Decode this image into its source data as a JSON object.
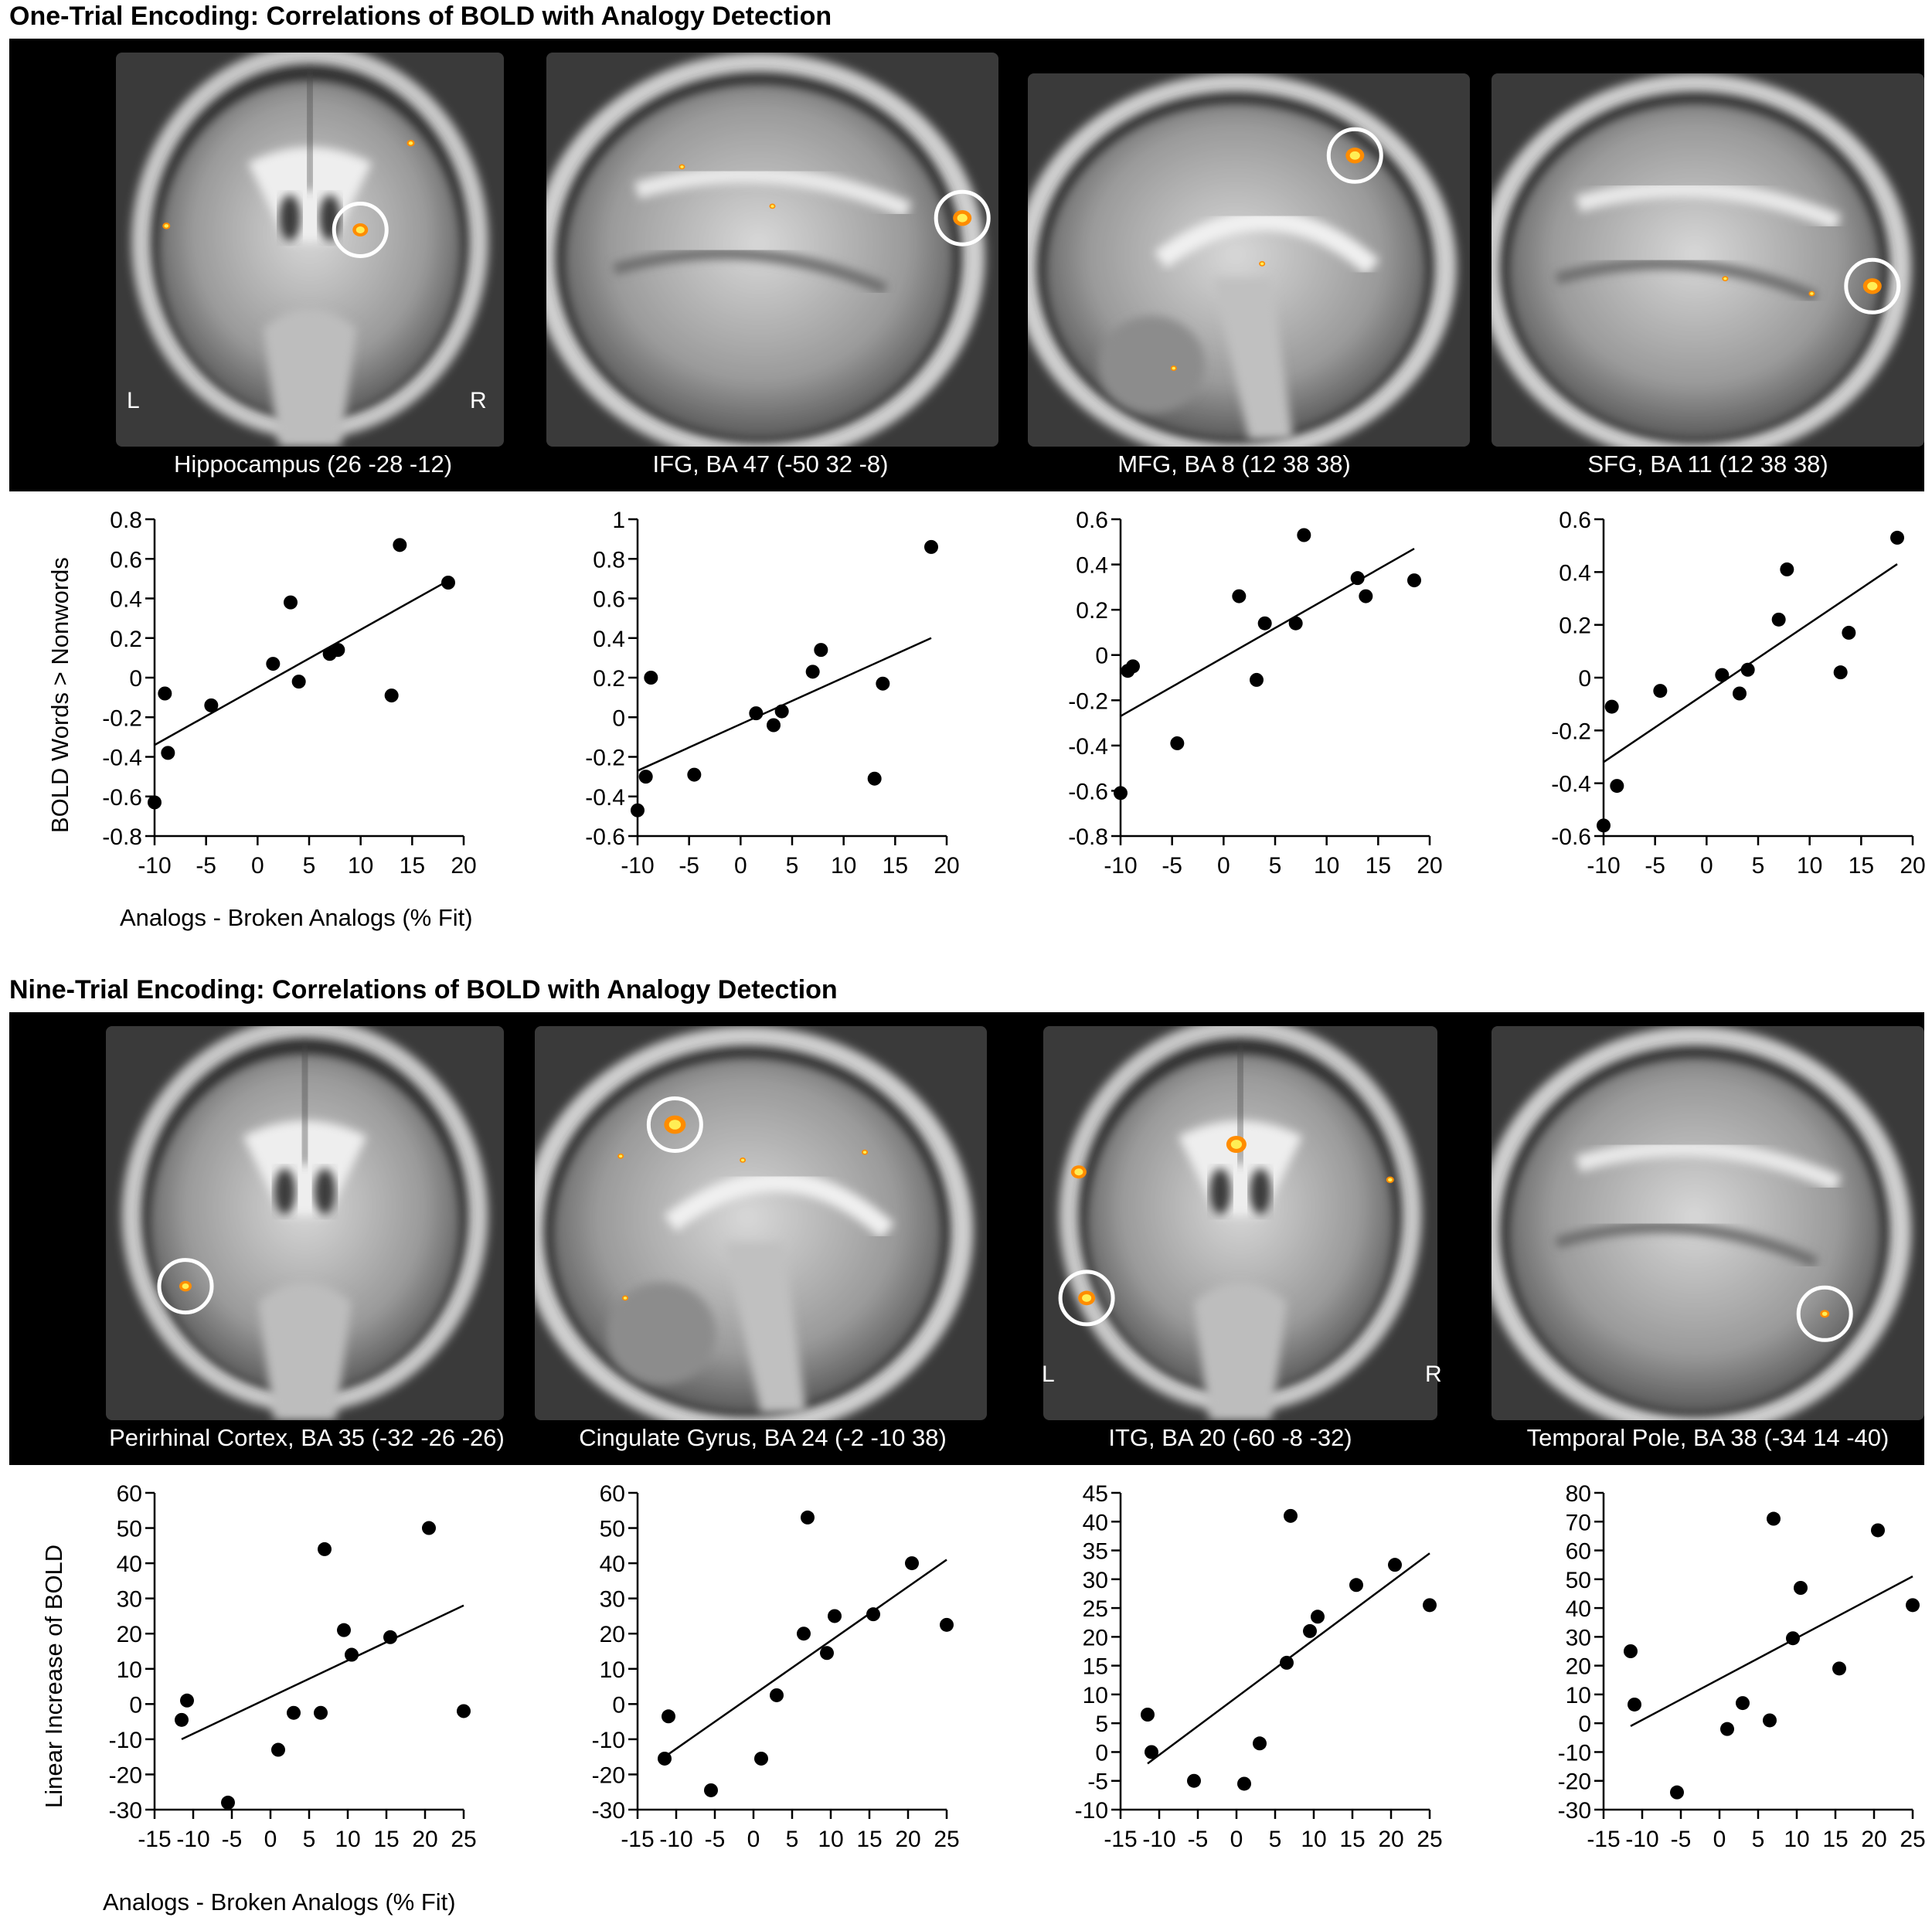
{
  "figure": {
    "sections": [
      {
        "title": "One-Trial Encoding: Correlations of BOLD with Analogy Detection",
        "panels": [
          {
            "label": "Hippocampus (26 -28 -12)",
            "view": "coronal",
            "left_marker": "L",
            "right_marker": "R"
          },
          {
            "label": "IFG, BA 47 (-50 32 -8)",
            "view": "sagittal-lateral"
          },
          {
            "label": "MFG, BA 8 (12 38 38)",
            "view": "sagittal-medial"
          },
          {
            "label": "SFG, BA 11 (12 38 38)",
            "view": "sagittal-lateral"
          }
        ],
        "y_axis_title": "BOLD Words > Nonwords",
        "x_axis_title": "Analogs - Broken Analogs (% Fit)"
      },
      {
        "title": "Nine-Trial Encoding: Correlations of BOLD with Analogy Detection",
        "panels": [
          {
            "label": "Perirhinal Cortex, BA 35 (-32 -26 -26)",
            "view": "coronal"
          },
          {
            "label": "Cingulate Gyrus, BA 24 (-2 -10 38)",
            "view": "sagittal-medial"
          },
          {
            "label": "ITG, BA 20 (-60 -8 -32)",
            "view": "coronal",
            "left_marker": "L",
            "right_marker": "R"
          },
          {
            "label": "Temporal Pole, BA 38 (-34 14 -40)",
            "view": "sagittal-lateral"
          }
        ],
        "y_axis_title": "Linear Increase of BOLD",
        "x_axis_title": "Analogs - Broken Analogs (% Fit)"
      }
    ],
    "colors": {
      "strip_background": "#000000",
      "activation": "#ff8c00",
      "activation_core": "#ffee55",
      "roi_circle": "#ffffff"
    }
  },
  "chart_data": [
    {
      "type": "scatter",
      "ylim": [
        -0.8,
        0.8
      ],
      "xlim": [
        -10,
        20
      ],
      "yticks": [
        "0.8",
        "0.6",
        "0.4",
        "0.2",
        "0",
        "-0.2",
        "-0.4",
        "-0.6",
        "-0.8"
      ],
      "ytick_values": [
        0.8,
        0.6,
        0.4,
        0.2,
        0,
        -0.2,
        -0.4,
        -0.6,
        -0.8
      ],
      "xticks": [
        "-10",
        "-5",
        "0",
        "5",
        "10",
        "15",
        "20"
      ],
      "xtick_values": [
        -10,
        -5,
        0,
        5,
        10,
        15,
        20
      ],
      "points": [
        [
          -10,
          -0.63
        ],
        [
          -9,
          -0.08
        ],
        [
          -8.7,
          -0.38
        ],
        [
          -4.5,
          -0.14
        ],
        [
          1.5,
          0.07
        ],
        [
          3.2,
          0.38
        ],
        [
          4,
          -0.02
        ],
        [
          7,
          0.12
        ],
        [
          7.8,
          0.14
        ],
        [
          13,
          -0.09
        ],
        [
          13.8,
          0.67
        ],
        [
          18.5,
          0.48
        ]
      ],
      "fit": [
        [
          -10,
          -0.34
        ],
        [
          18.5,
          0.49
        ]
      ]
    },
    {
      "type": "scatter",
      "ylim": [
        -0.6,
        1.0
      ],
      "xlim": [
        -10,
        20
      ],
      "yticks": [
        "1",
        "0.8",
        "0.6",
        "0.4",
        "0.2",
        "0",
        "-0.2",
        "-0.4",
        "-0.6"
      ],
      "ytick_values": [
        1,
        0.8,
        0.6,
        0.4,
        0.2,
        0,
        -0.2,
        -0.4,
        -0.6
      ],
      "xticks": [
        "-10",
        "-5",
        "0",
        "5",
        "10",
        "15",
        "20"
      ],
      "xtick_values": [
        -10,
        -5,
        0,
        5,
        10,
        15,
        20
      ],
      "points": [
        [
          -10,
          -0.47
        ],
        [
          -9.2,
          -0.3
        ],
        [
          -8.7,
          0.2
        ],
        [
          -4.5,
          -0.29
        ],
        [
          1.5,
          0.02
        ],
        [
          3.2,
          -0.04
        ],
        [
          4,
          0.03
        ],
        [
          7,
          0.23
        ],
        [
          7.8,
          0.34
        ],
        [
          13,
          -0.31
        ],
        [
          13.8,
          0.17
        ],
        [
          18.5,
          0.86
        ]
      ],
      "fit": [
        [
          -10,
          -0.27
        ],
        [
          18.5,
          0.4
        ]
      ]
    },
    {
      "type": "scatter",
      "ylim": [
        -0.8,
        0.6
      ],
      "xlim": [
        -10,
        20
      ],
      "yticks": [
        "0.6",
        "0.4",
        "0.2",
        "0",
        "-0.2",
        "-0.4",
        "-0.6",
        "-0.8"
      ],
      "ytick_values": [
        0.6,
        0.4,
        0.2,
        0,
        -0.2,
        -0.4,
        -0.6,
        -0.8
      ],
      "xticks": [
        "-10",
        "-5",
        "0",
        "5",
        "10",
        "15",
        "20"
      ],
      "xtick_values": [
        -10,
        -5,
        0,
        5,
        10,
        15,
        20
      ],
      "points": [
        [
          -10,
          -0.61
        ],
        [
          -9.3,
          -0.07
        ],
        [
          -8.8,
          -0.05
        ],
        [
          -4.5,
          -0.39
        ],
        [
          1.5,
          0.26
        ],
        [
          3.2,
          -0.11
        ],
        [
          4,
          0.14
        ],
        [
          7,
          0.14
        ],
        [
          7.8,
          0.53
        ],
        [
          13,
          0.34
        ],
        [
          13.8,
          0.26
        ],
        [
          18.5,
          0.33
        ]
      ],
      "fit": [
        [
          -10,
          -0.27
        ],
        [
          18.5,
          0.47
        ]
      ]
    },
    {
      "type": "scatter",
      "ylim": [
        -0.6,
        0.6
      ],
      "xlim": [
        -10,
        20
      ],
      "yticks": [
        "0.6",
        "0.4",
        "0.2",
        "0",
        "-0.2",
        "-0.4",
        "-0.6"
      ],
      "ytick_values": [
        0.6,
        0.4,
        0.2,
        0,
        -0.2,
        -0.4,
        -0.6
      ],
      "xticks": [
        "-10",
        "-5",
        "0",
        "5",
        "10",
        "15",
        "20"
      ],
      "xtick_values": [
        -10,
        -5,
        0,
        5,
        10,
        15,
        20
      ],
      "points": [
        [
          -10,
          -0.56
        ],
        [
          -9.2,
          -0.11
        ],
        [
          -8.7,
          -0.41
        ],
        [
          -4.5,
          -0.05
        ],
        [
          1.5,
          0.01
        ],
        [
          3.2,
          -0.06
        ],
        [
          4,
          0.03
        ],
        [
          7,
          0.22
        ],
        [
          7.8,
          0.41
        ],
        [
          13,
          0.02
        ],
        [
          13.8,
          0.17
        ],
        [
          18.5,
          0.53
        ]
      ],
      "fit": [
        [
          -10,
          -0.32
        ],
        [
          18.5,
          0.43
        ]
      ]
    },
    {
      "type": "scatter",
      "ylim": [
        -30,
        60
      ],
      "xlim": [
        -15,
        25
      ],
      "yticks": [
        "60",
        "50",
        "40",
        "30",
        "20",
        "10",
        "0",
        "-10",
        "-20",
        "-30"
      ],
      "ytick_values": [
        60,
        50,
        40,
        30,
        20,
        10,
        0,
        -10,
        -20,
        -30
      ],
      "xticks": [
        "-15",
        "-10",
        "-5",
        "0",
        "5",
        "10",
        "15",
        "20",
        "25"
      ],
      "xtick_values": [
        -15,
        -10,
        -5,
        0,
        5,
        10,
        15,
        20,
        25
      ],
      "points": [
        [
          -11.5,
          -4.5
        ],
        [
          -10.8,
          1
        ],
        [
          -5.5,
          -28
        ],
        [
          1,
          -13
        ],
        [
          3,
          -2.5
        ],
        [
          6.5,
          -2.5
        ],
        [
          7,
          44
        ],
        [
          9.5,
          21
        ],
        [
          10.5,
          14
        ],
        [
          15.5,
          19
        ],
        [
          20.5,
          50
        ],
        [
          25,
          -2
        ]
      ],
      "fit": [
        [
          -11.5,
          -10
        ],
        [
          25,
          28
        ]
      ]
    },
    {
      "type": "scatter",
      "ylim": [
        -30,
        60
      ],
      "xlim": [
        -15,
        25
      ],
      "yticks": [
        "60",
        "50",
        "40",
        "30",
        "20",
        "10",
        "0",
        "-10",
        "-20",
        "-30"
      ],
      "ytick_values": [
        60,
        50,
        40,
        30,
        20,
        10,
        0,
        -10,
        -20,
        -30
      ],
      "xticks": [
        "-15",
        "-10",
        "-5",
        "0",
        "5",
        "10",
        "15",
        "20",
        "25"
      ],
      "xtick_values": [
        -15,
        -10,
        -5,
        0,
        5,
        10,
        15,
        20,
        25
      ],
      "points": [
        [
          -11.5,
          -15.5
        ],
        [
          -11,
          -3.5
        ],
        [
          -5.5,
          -24.5
        ],
        [
          1,
          -15.5
        ],
        [
          3,
          2.5
        ],
        [
          6.5,
          20
        ],
        [
          7,
          53
        ],
        [
          9.5,
          14.5
        ],
        [
          10.5,
          25
        ],
        [
          15.5,
          25.5
        ],
        [
          20.5,
          40
        ],
        [
          25,
          22.5
        ]
      ],
      "fit": [
        [
          -11.5,
          -15
        ],
        [
          25,
          41
        ]
      ]
    },
    {
      "type": "scatter",
      "ylim": [
        -10,
        45
      ],
      "xlim": [
        -15,
        25
      ],
      "yticks": [
        "45",
        "40",
        "35",
        "30",
        "25",
        "20",
        "15",
        "10",
        "5",
        "0",
        "-5",
        "-10"
      ],
      "ytick_values": [
        45,
        40,
        35,
        30,
        25,
        20,
        15,
        10,
        5,
        0,
        -5,
        -10
      ],
      "xticks": [
        "-15",
        "-10",
        "-5",
        "0",
        "5",
        "10",
        "15",
        "20",
        "25"
      ],
      "xtick_values": [
        -15,
        -10,
        -5,
        0,
        5,
        10,
        15,
        20,
        25
      ],
      "points": [
        [
          -11.5,
          6.5
        ],
        [
          -11,
          0
        ],
        [
          -5.5,
          -5
        ],
        [
          1,
          -5.5
        ],
        [
          3,
          1.5
        ],
        [
          6.5,
          15.5
        ],
        [
          7,
          41
        ],
        [
          9.5,
          21
        ],
        [
          10.5,
          23.5
        ],
        [
          15.5,
          29
        ],
        [
          20.5,
          32.5
        ],
        [
          25,
          25.5
        ]
      ],
      "fit": [
        [
          -11.5,
          -2
        ],
        [
          25,
          34.5
        ]
      ]
    },
    {
      "type": "scatter",
      "ylim": [
        -30,
        80
      ],
      "xlim": [
        -15,
        25
      ],
      "yticks": [
        "80",
        "70",
        "60",
        "50",
        "40",
        "30",
        "20",
        "10",
        "0",
        "-10",
        "-20",
        "-30"
      ],
      "ytick_values": [
        80,
        70,
        60,
        50,
        40,
        30,
        20,
        10,
        0,
        -10,
        -20,
        -30
      ],
      "xticks": [
        "-15",
        "-10",
        "-5",
        "0",
        "5",
        "10",
        "15",
        "20",
        "25"
      ],
      "xtick_values": [
        -15,
        -10,
        -5,
        0,
        5,
        10,
        15,
        20,
        25
      ],
      "points": [
        [
          -11.5,
          25
        ],
        [
          -11,
          6.5
        ],
        [
          -5.5,
          -24
        ],
        [
          1,
          -2
        ],
        [
          3,
          7
        ],
        [
          6.5,
          1
        ],
        [
          7,
          71
        ],
        [
          9.5,
          29.5
        ],
        [
          10.5,
          47
        ],
        [
          15.5,
          19
        ],
        [
          20.5,
          67
        ],
        [
          25,
          41
        ]
      ],
      "fit": [
        [
          -11.5,
          -1
        ],
        [
          25,
          51
        ]
      ]
    }
  ]
}
